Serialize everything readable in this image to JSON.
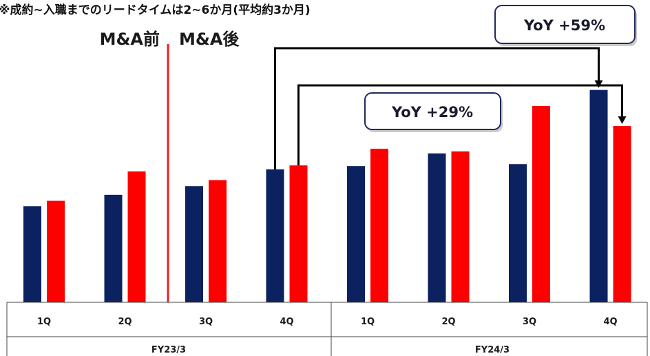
{
  "note": "※成約~入職までのリードタイムは2~6か月(平均約3か月)",
  "eras": {
    "before": "M&A前",
    "after": "M&A後"
  },
  "colors": {
    "navy": "#0b2160",
    "red": "#fd0000",
    "divider": "#ee1c25",
    "box_border": "#1f2a5a"
  },
  "chart_data": {
    "type": "bar",
    "title": "",
    "xlabel": "",
    "ylabel": "",
    "ylim": [
      0,
      330
    ],
    "grid": false,
    "legend": "none",
    "groups": [
      {
        "label": "FY23/3",
        "categories": [
          "1Q",
          "2Q",
          "3Q",
          "4Q"
        ]
      },
      {
        "label": "FY24/3",
        "categories": [
          "1Q",
          "2Q",
          "3Q",
          "4Q"
        ]
      }
    ],
    "categories": [
      "1Q",
      "2Q",
      "3Q",
      "4Q",
      "1Q",
      "2Q",
      "3Q",
      "4Q"
    ],
    "series": [
      {
        "color": "#0b2160",
        "values": [
          144,
          161,
          174,
          199,
          204,
          223,
          207,
          318
        ]
      },
      {
        "color": "#fd0000",
        "values": [
          152,
          196,
          183,
          205,
          230,
          226,
          294,
          264
        ]
      }
    ],
    "annotations": [
      {
        "text": "YoY +29%",
        "from_category": 3,
        "from_series": 1,
        "to_category": 7,
        "to_series": 1
      },
      {
        "text": "YoY +59%",
        "from_category": 3,
        "from_series": 0,
        "to_category": 7,
        "to_series": 0
      }
    ]
  }
}
